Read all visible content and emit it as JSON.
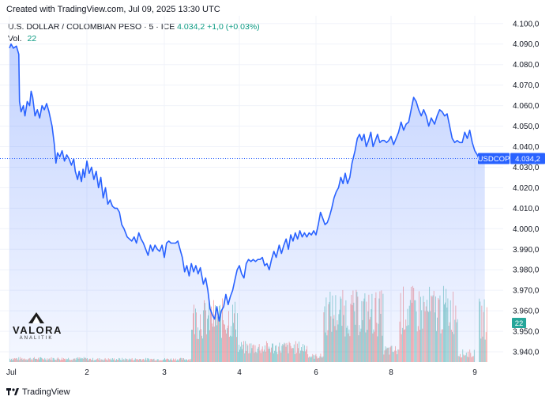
{
  "header": {
    "caption": "Created with TradingView.com, Jul 09, 2025 13:30 UTC",
    "symbol": "U.S. DOLLAR / COLOMBIAN PESO · 5 · ICE",
    "last": "4.034,2",
    "change": "+1,0 (+0,03%)",
    "vol_label": "Vol.",
    "vol_value": "22"
  },
  "watermark": {
    "name": "VALORA",
    "sub": "ANALITIK"
  },
  "footer": {
    "brand": "TradingView"
  },
  "colors": {
    "line": "#2962ff",
    "fill": "#2962ff",
    "vol_up": "#26a69a",
    "vol_down": "#ef5350",
    "price_tag": "#2962ff",
    "vol_tag": "#26a69a"
  },
  "chart_data": {
    "type": "area",
    "title": "U.S. DOLLAR / COLOMBIAN PESO · 5 · ICE",
    "symbol": "USDCOP",
    "last_price": 4034.2,
    "last_price_label": "4.034,2",
    "last_volume_label": "22",
    "ylim": [
      3935,
      4103
    ],
    "y_ticks": [
      {
        "value": 4100,
        "label": "4.100,0"
      },
      {
        "value": 4090,
        "label": "4.090,0"
      },
      {
        "value": 4080,
        "label": "4.080,0"
      },
      {
        "value": 4070,
        "label": "4.070,0"
      },
      {
        "value": 4060,
        "label": "4.060,0"
      },
      {
        "value": 4050,
        "label": "4.050,0"
      },
      {
        "value": 4040,
        "label": "4.040,0"
      },
      {
        "value": 4030,
        "label": "4.030,0"
      },
      {
        "value": 4020,
        "label": "4.020,0"
      },
      {
        "value": 4010,
        "label": "4.010,0"
      },
      {
        "value": 4000,
        "label": "4.000,0"
      },
      {
        "value": 3990,
        "label": "3.990,0"
      },
      {
        "value": 3980,
        "label": "3.980,0"
      },
      {
        "value": 3970,
        "label": "3.970,0"
      },
      {
        "value": 3960,
        "label": "3.960,0"
      },
      {
        "value": 3950,
        "label": "3.950,0"
      },
      {
        "value": 3940,
        "label": "3.940,0"
      }
    ],
    "xlim": [
      0,
      8.2
    ],
    "x_ticks": [
      {
        "t": 0,
        "label": "Jul"
      },
      {
        "t": 1,
        "label": "2"
      },
      {
        "t": 2,
        "label": "3"
      },
      {
        "t": 3,
        "label": "4"
      },
      {
        "t": 4,
        "label": "6"
      },
      {
        "t": 5,
        "label": "8"
      },
      {
        "t": 6,
        "label": "9"
      }
    ],
    "session_segments": [
      {
        "start_t": 0.0,
        "end_t": 3.0,
        "days": 3
      },
      {
        "start_t": 4.0,
        "end_t": 6.0,
        "days": 2
      },
      {
        "start_t": 6.0,
        "end_t": 6.15,
        "days": 0.15
      }
    ],
    "price": [
      [
        0.0,
        4088
      ],
      [
        0.02,
        4090
      ],
      [
        0.05,
        4088
      ],
      [
        0.09,
        4089
      ],
      [
        0.12,
        4085
      ],
      [
        0.13,
        4062
      ],
      [
        0.15,
        4057
      ],
      [
        0.18,
        4060
      ],
      [
        0.2,
        4055
      ],
      [
        0.23,
        4062
      ],
      [
        0.26,
        4060
      ],
      [
        0.28,
        4067
      ],
      [
        0.3,
        4064
      ],
      [
        0.33,
        4055
      ],
      [
        0.36,
        4058
      ],
      [
        0.39,
        4054
      ],
      [
        0.42,
        4060
      ],
      [
        0.45,
        4058
      ],
      [
        0.48,
        4061
      ],
      [
        0.51,
        4057
      ],
      [
        0.55,
        4050
      ],
      [
        0.58,
        4041
      ],
      [
        0.6,
        4032
      ],
      [
        0.62,
        4037
      ],
      [
        0.65,
        4035
      ],
      [
        0.68,
        4038
      ],
      [
        0.71,
        4033
      ],
      [
        0.74,
        4036
      ],
      [
        0.77,
        4034
      ],
      [
        0.8,
        4031
      ],
      [
        0.83,
        4034
      ],
      [
        0.85,
        4028
      ],
      [
        0.88,
        4024
      ],
      [
        0.9,
        4028
      ],
      [
        0.93,
        4023
      ],
      [
        0.95,
        4029
      ],
      [
        0.97,
        4025
      ],
      [
        1.0,
        4033
      ],
      [
        1.03,
        4027
      ],
      [
        1.06,
        4030
      ],
      [
        1.09,
        4024
      ],
      [
        1.12,
        4028
      ],
      [
        1.15,
        4020
      ],
      [
        1.18,
        4025
      ],
      [
        1.21,
        4015
      ],
      [
        1.24,
        4020
      ],
      [
        1.27,
        4012
      ],
      [
        1.3,
        4014
      ],
      [
        1.33,
        4011
      ],
      [
        1.36,
        4010
      ],
      [
        1.39,
        4010
      ],
      [
        1.42,
        4008
      ],
      [
        1.45,
        4002
      ],
      [
        1.48,
        4000
      ],
      [
        1.52,
        3996
      ],
      [
        1.55,
        3995
      ],
      [
        1.58,
        3994
      ],
      [
        1.61,
        3996
      ],
      [
        1.64,
        3993
      ],
      [
        1.67,
        3998
      ],
      [
        1.7,
        3995
      ],
      [
        1.73,
        3993
      ],
      [
        1.76,
        3990
      ],
      [
        1.79,
        3987
      ],
      [
        1.82,
        3992
      ],
      [
        1.85,
        3989
      ],
      [
        1.88,
        3992
      ],
      [
        1.91,
        3990
      ],
      [
        1.94,
        3989
      ],
      [
        1.97,
        3992
      ],
      [
        2.0,
        3986
      ],
      [
        2.03,
        3993
      ],
      [
        2.06,
        3994
      ],
      [
        2.09,
        3993
      ],
      [
        2.12,
        3993
      ],
      [
        2.15,
        3993
      ],
      [
        2.18,
        3994
      ],
      [
        2.21,
        3990
      ],
      [
        2.24,
        3986
      ],
      [
        2.27,
        3979
      ],
      [
        2.3,
        3982
      ],
      [
        2.33,
        3977
      ],
      [
        2.36,
        3983
      ],
      [
        2.39,
        3979
      ],
      [
        2.42,
        3982
      ],
      [
        2.45,
        3978
      ],
      [
        2.48,
        3981
      ],
      [
        2.52,
        3973
      ],
      [
        2.55,
        3976
      ],
      [
        2.58,
        3970
      ],
      [
        2.61,
        3961
      ],
      [
        2.64,
        3958
      ],
      [
        2.67,
        3956
      ],
      [
        2.7,
        3962
      ],
      [
        2.73,
        3955
      ],
      [
        2.76,
        3960
      ],
      [
        2.79,
        3962
      ],
      [
        2.82,
        3968
      ],
      [
        2.85,
        3963
      ],
      [
        2.88,
        3967
      ],
      [
        2.91,
        3970
      ],
      [
        2.94,
        3975
      ],
      [
        2.97,
        3980
      ],
      [
        3.0,
        3982
      ],
      [
        3.03,
        3978
      ],
      [
        3.06,
        3976
      ],
      [
        3.09,
        3983
      ],
      [
        3.12,
        3985
      ],
      [
        3.15,
        3984
      ],
      [
        3.18,
        3985
      ],
      [
        3.21,
        3984
      ],
      [
        3.24,
        3985
      ],
      [
        3.27,
        3985
      ],
      [
        3.3,
        3986
      ],
      [
        3.33,
        3982
      ],
      [
        3.36,
        3983
      ],
      [
        3.39,
        3980
      ],
      [
        3.42,
        3985
      ],
      [
        3.45,
        3989
      ],
      [
        3.48,
        3986
      ],
      [
        3.52,
        3992
      ],
      [
        3.55,
        3988
      ],
      [
        3.58,
        3992
      ],
      [
        3.61,
        3995
      ],
      [
        3.64,
        3990
      ],
      [
        3.67,
        3997
      ],
      [
        3.7,
        3994
      ],
      [
        3.73,
        3998
      ],
      [
        3.76,
        3995
      ],
      [
        3.79,
        3999
      ],
      [
        3.82,
        3996
      ],
      [
        3.85,
        3998
      ],
      [
        3.88,
        3996
      ],
      [
        3.91,
        3998
      ],
      [
        3.94,
        3997
      ],
      [
        3.97,
        3999
      ],
      [
        4.0,
        3997
      ],
      [
        4.03,
        4002
      ],
      [
        4.06,
        4008
      ],
      [
        4.09,
        4005
      ],
      [
        4.12,
        4002
      ],
      [
        4.15,
        4003
      ],
      [
        4.18,
        4006
      ],
      [
        4.21,
        4010
      ],
      [
        4.24,
        4015
      ],
      [
        4.27,
        4018
      ],
      [
        4.3,
        4020
      ],
      [
        4.33,
        4025
      ],
      [
        4.36,
        4022
      ],
      [
        4.39,
        4027
      ],
      [
        4.42,
        4022
      ],
      [
        4.45,
        4025
      ],
      [
        4.48,
        4032
      ],
      [
        4.52,
        4038
      ],
      [
        4.55,
        4044
      ],
      [
        4.58,
        4046
      ],
      [
        4.61,
        4043
      ],
      [
        4.64,
        4046
      ],
      [
        4.67,
        4040
      ],
      [
        4.7,
        4043
      ],
      [
        4.73,
        4047
      ],
      [
        4.76,
        4040
      ],
      [
        4.79,
        4043
      ],
      [
        4.82,
        4046
      ],
      [
        4.85,
        4042
      ],
      [
        4.88,
        4043
      ],
      [
        4.91,
        4043
      ],
      [
        4.94,
        4042
      ],
      [
        4.97,
        4043
      ],
      [
        5.0,
        4045
      ],
      [
        5.03,
        4041
      ],
      [
        5.06,
        4044
      ],
      [
        5.09,
        4047
      ],
      [
        5.12,
        4052
      ],
      [
        5.15,
        4048
      ],
      [
        5.18,
        4051
      ],
      [
        5.21,
        4052
      ],
      [
        5.24,
        4058
      ],
      [
        5.27,
        4064
      ],
      [
        5.3,
        4062
      ],
      [
        5.33,
        4058
      ],
      [
        5.36,
        4055
      ],
      [
        5.39,
        4058
      ],
      [
        5.42,
        4055
      ],
      [
        5.45,
        4050
      ],
      [
        5.48,
        4054
      ],
      [
        5.52,
        4051
      ],
      [
        5.55,
        4055
      ],
      [
        5.58,
        4058
      ],
      [
        5.61,
        4057
      ],
      [
        5.64,
        4055
      ],
      [
        5.67,
        4056
      ],
      [
        5.7,
        4050
      ],
      [
        5.73,
        4044
      ],
      [
        5.76,
        4042
      ],
      [
        5.79,
        4043
      ],
      [
        5.82,
        4042
      ],
      [
        5.85,
        4042
      ],
      [
        5.88,
        4047
      ],
      [
        5.91,
        4044
      ],
      [
        5.94,
        4048
      ],
      [
        5.97,
        4042
      ],
      [
        6.0,
        4038
      ],
      [
        6.03,
        4036
      ],
      [
        6.06,
        4033
      ],
      [
        6.09,
        4034
      ],
      [
        6.12,
        4034.2
      ]
    ],
    "volume_ylim": [
      0,
      40
    ],
    "volume_bars_count": 350
  }
}
